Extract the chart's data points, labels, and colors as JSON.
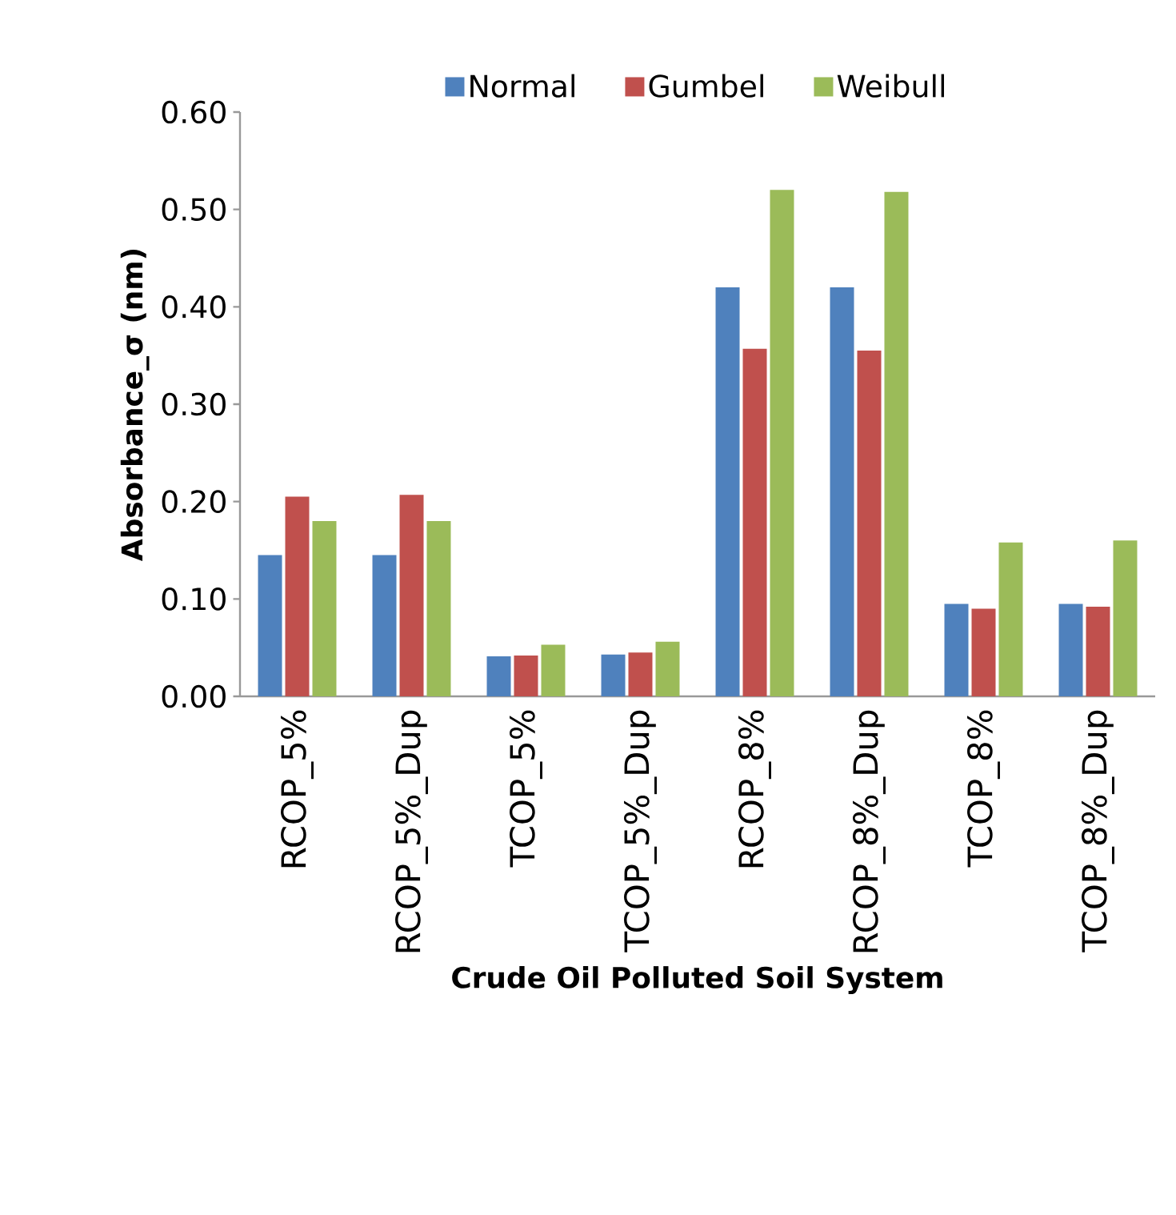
{
  "chart_data": {
    "type": "bar",
    "xlabel": "Crude Oil Polluted Soil System",
    "ylabel": "Absorbance_σ (nm)",
    "categories": [
      "RCOP_5%",
      "RCOP_5%_Dup",
      "TCOP_5%",
      "TCOP_5%_Dup",
      "RCOP_8%",
      "RCOP_8%_Dup",
      "TCOP_8%",
      "TCOP_8%_Dup"
    ],
    "series": [
      {
        "name": "Normal",
        "color": "#4f81bd",
        "values": [
          0.145,
          0.145,
          0.041,
          0.043,
          0.42,
          0.42,
          0.095,
          0.095
        ]
      },
      {
        "name": "Gumbel",
        "color": "#c0504d",
        "values": [
          0.205,
          0.207,
          0.042,
          0.045,
          0.357,
          0.355,
          0.09,
          0.092
        ]
      },
      {
        "name": "Weibull",
        "color": "#9bbb59",
        "values": [
          0.18,
          0.18,
          0.053,
          0.056,
          0.52,
          0.518,
          0.158,
          0.16
        ]
      }
    ],
    "ylim": [
      0,
      0.6
    ],
    "yticks": [
      {
        "value": 0,
        "label": "0.00"
      },
      {
        "value": 0.1,
        "label": "0.10"
      },
      {
        "value": 0.2,
        "label": "0.20"
      },
      {
        "value": 0.3,
        "label": "0.30"
      },
      {
        "value": 0.4,
        "label": "0.40"
      },
      {
        "value": 0.5,
        "label": "0.50"
      },
      {
        "value": 0.6,
        "label": "0.60"
      }
    ],
    "grid": false,
    "legend": "top"
  }
}
